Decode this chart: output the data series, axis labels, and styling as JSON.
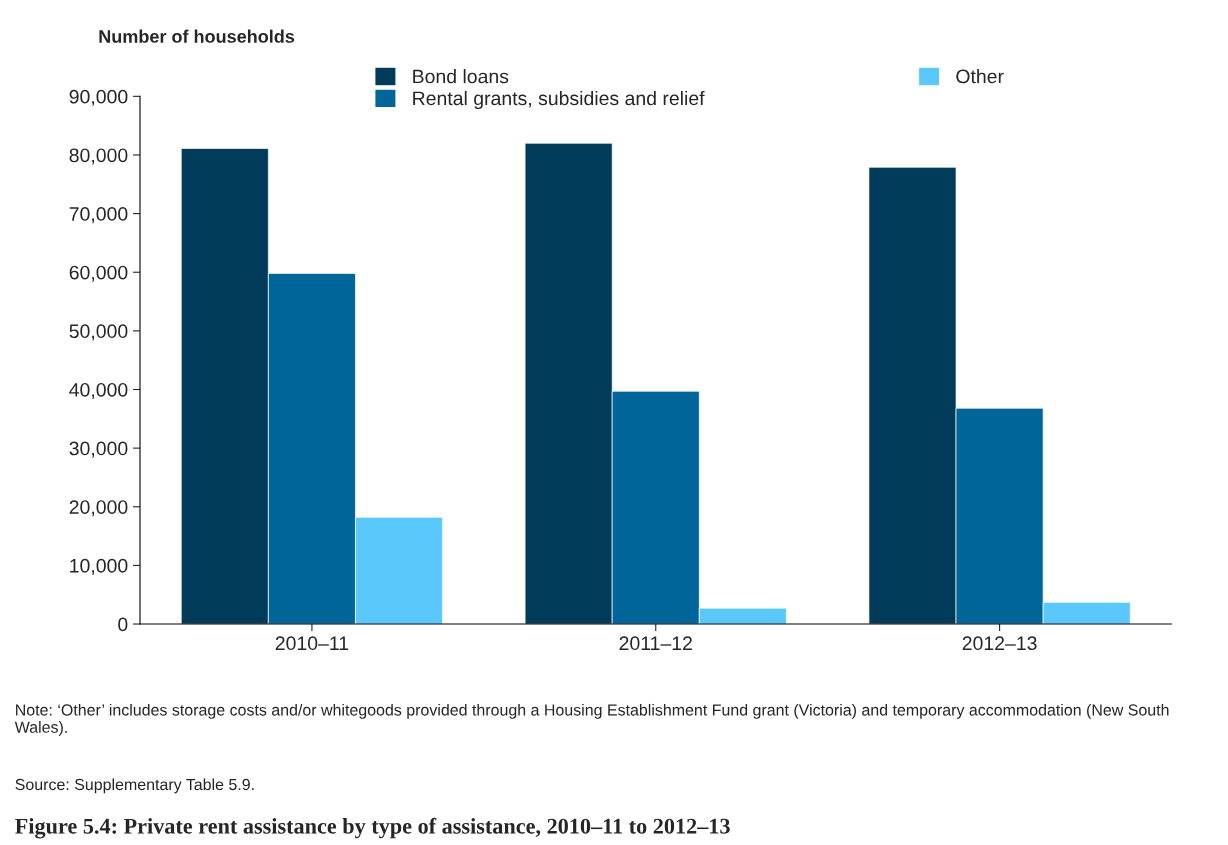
{
  "chart_data": {
    "type": "bar",
    "title": "Figure 5.4: Private rent assistance by type of assistance, 2010–11 to 2012–13",
    "ylabel": "Number of households",
    "categories": [
      "2010–11",
      "2011–12",
      "2012–13"
    ],
    "series": [
      {
        "name": "Bond loans",
        "color": "#003b5a",
        "values": [
          81100,
          82000,
          77900
        ]
      },
      {
        "name": "Rental grants, subsidies and relief",
        "color": "#00669a",
        "values": [
          59800,
          39700,
          36800
        ]
      },
      {
        "name": "Other",
        "color": "#5bc8fc",
        "values": [
          18200,
          2700,
          3700
        ]
      }
    ],
    "ylim": [
      0,
      90000
    ],
    "yticks": [
      {
        "value": 0,
        "label": "0"
      },
      {
        "value": 10000,
        "label": "10,000"
      },
      {
        "value": 20000,
        "label": "20,000"
      },
      {
        "value": 30000,
        "label": "30,000"
      },
      {
        "value": 40000,
        "label": "40,000"
      },
      {
        "value": 50000,
        "label": "50,000"
      },
      {
        "value": 60000,
        "label": "60,000"
      },
      {
        "value": 70000,
        "label": "70,000"
      },
      {
        "value": 80000,
        "label": "80,000"
      },
      {
        "value": 90000,
        "label": "90,000"
      }
    ],
    "grid": false,
    "legend": "top",
    "annotations": [
      "Note: ‘Other’ includes storage costs and/or whitegoods provided through a Housing Establishment Fund grant (Victoria) and temporary accommodation (New South Wales).",
      "Source: Supplementary Table 5.9."
    ]
  }
}
